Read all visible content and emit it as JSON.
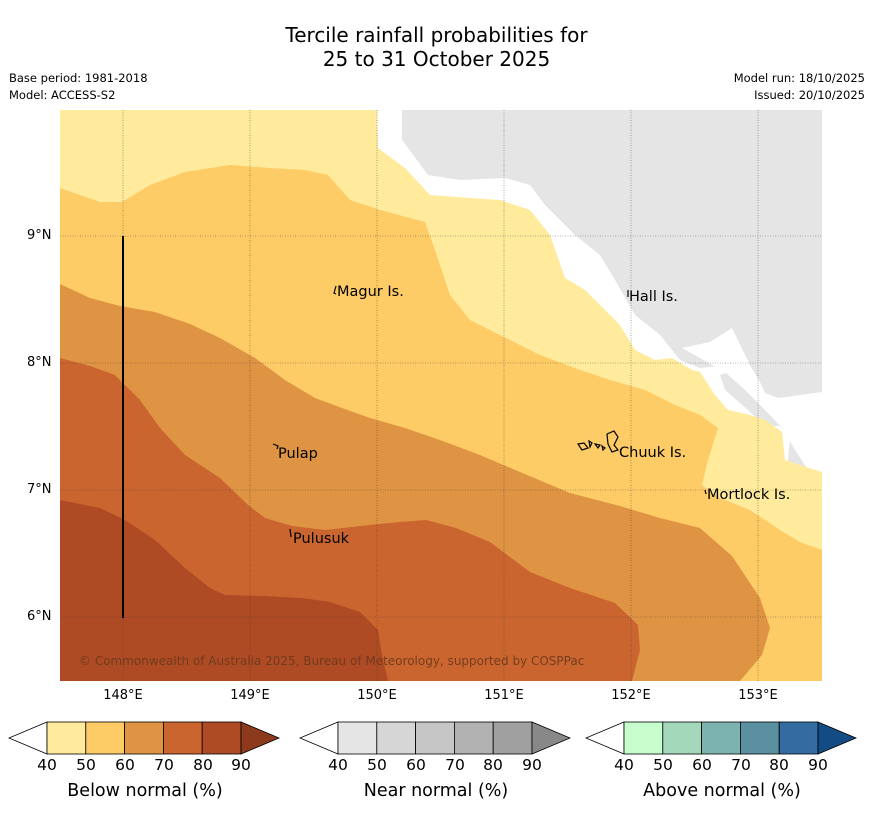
{
  "title": {
    "line1": "Tercile rainfall probabilities for",
    "line2": "25 to 31 October 2025"
  },
  "meta": {
    "base_period": "Base period: 1981-2018",
    "model": "Model: ACCESS-S2",
    "model_run": "Model run: 18/10/2025",
    "issued": "Issued: 20/10/2025"
  },
  "map": {
    "lat_labels": [
      "9°N",
      "8°N",
      "7°N",
      "6°N"
    ],
    "lon_labels": [
      "148°E",
      "149°E",
      "150°E",
      "151°E",
      "152°E",
      "153°E"
    ],
    "places": {
      "magur": "Magur Is.",
      "hall": "Hall Is.",
      "pulap": "Pulap",
      "chuuk": "Chuuk Is.",
      "mortlock": "Mortlock Is.",
      "pulusuk": "Pulusuk"
    },
    "copyright": "© Commonwealth of Australia 2025, Bureau of Meteorology, supported by COSPPac",
    "colors": {
      "below_50": "#ffeb9b",
      "below_60": "#fecc66",
      "below_70": "#df9443",
      "below_80": "#cb652f",
      "below_90": "#ae4b24",
      "near_50": "#e5e5e5"
    }
  },
  "legends": {
    "below": {
      "title": "Below normal (%)",
      "ticks": [
        "40",
        "50",
        "60",
        "70",
        "80",
        "90"
      ],
      "colors": [
        "#ffffff",
        "#ffeb9b",
        "#fecc66",
        "#df9443",
        "#cb652f",
        "#ae4b24",
        "#8d3a1c"
      ]
    },
    "near": {
      "title": "Near normal (%)",
      "ticks": [
        "40",
        "50",
        "60",
        "70",
        "80",
        "90"
      ],
      "colors": [
        "#ffffff",
        "#e5e5e5",
        "#d6d6d6",
        "#c6c6c6",
        "#b2b2b2",
        "#a0a0a0",
        "#888888"
      ]
    },
    "above": {
      "title": "Above normal (%)",
      "ticks": [
        "40",
        "50",
        "60",
        "70",
        "80",
        "90"
      ],
      "colors": [
        "#ffffff",
        "#c7fdcd",
        "#a3d8bb",
        "#7db3ae",
        "#5b90a0",
        "#336ca0",
        "#134b85"
      ]
    }
  }
}
